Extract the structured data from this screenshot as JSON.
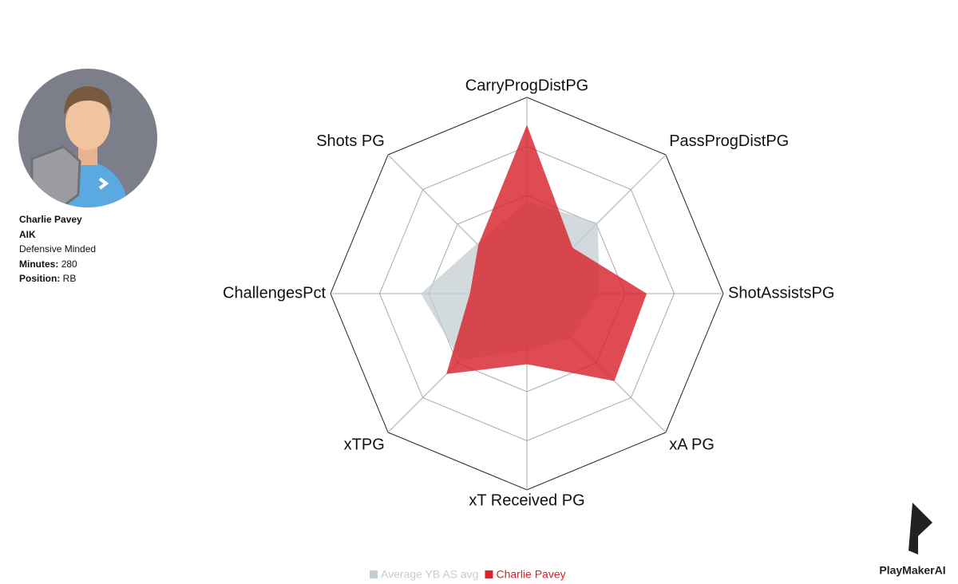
{
  "profile": {
    "name": "Charlie Pavey",
    "team": "AIK",
    "style": "Defensive Minded",
    "fields": [
      {
        "label": "Minutes:",
        "value": 280
      },
      {
        "label": "Position:",
        "value": "RB"
      }
    ]
  },
  "brand": "PlayMakerAI",
  "chart_data": {
    "type": "radar",
    "categories": [
      "CarryProgDistPG",
      "PassProgDistPG",
      "ShotAssistsPG",
      "xA PG",
      "xT Received PG",
      "xTPG",
      "ChallengesPct",
      "Shots PG"
    ],
    "rlim": [
      0,
      100
    ],
    "rticks": [
      25,
      50,
      75,
      100
    ],
    "series": [
      {
        "name": "Average YB AS avg",
        "color": "#c3cdd3",
        "values": [
          47,
          51,
          37,
          32,
          29,
          48,
          54,
          36
        ]
      },
      {
        "name": "Charlie Pavey",
        "color": "#d8232d",
        "values": [
          86,
          33,
          61,
          63,
          36,
          58,
          29,
          35
        ]
      }
    ]
  }
}
